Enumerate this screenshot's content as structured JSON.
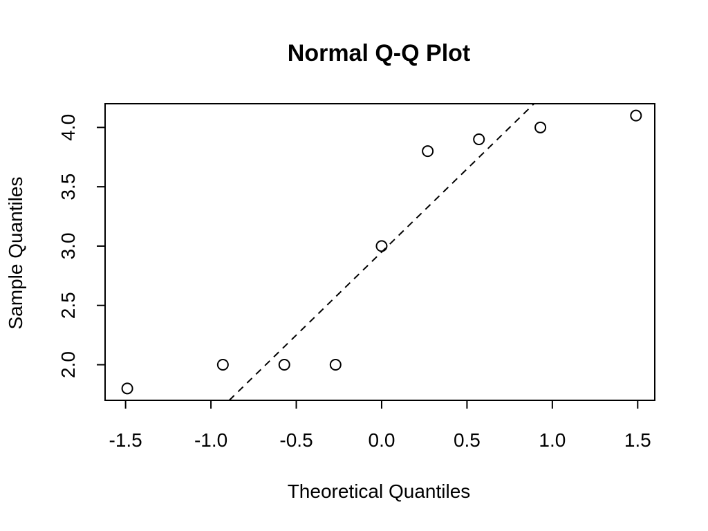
{
  "chart_data": {
    "type": "scatter",
    "title": "Normal Q-Q Plot",
    "xlabel": "Theoretical Quantiles",
    "ylabel": "Sample Quantiles",
    "xlim": [
      -1.62,
      1.6
    ],
    "ylim": [
      1.7,
      4.2
    ],
    "x_ticks": [
      "-1.5",
      "-1.0",
      "-0.5",
      "0.0",
      "0.5",
      "1.0",
      "1.5"
    ],
    "y_ticks": [
      "2.0",
      "2.5",
      "3.0",
      "3.5",
      "4.0"
    ],
    "grid": false,
    "points": [
      {
        "x": -1.49,
        "y": 1.8
      },
      {
        "x": -0.93,
        "y": 2.0
      },
      {
        "x": -0.57,
        "y": 2.0
      },
      {
        "x": -0.27,
        "y": 2.0
      },
      {
        "x": 0.0,
        "y": 3.0
      },
      {
        "x": 0.27,
        "y": 3.8
      },
      {
        "x": 0.57,
        "y": 3.9
      },
      {
        "x": 0.93,
        "y": 4.0
      },
      {
        "x": 1.49,
        "y": 4.1
      }
    ],
    "reference_line": {
      "style": "dashed",
      "slope": 1.4,
      "intercept": 2.95
    }
  }
}
